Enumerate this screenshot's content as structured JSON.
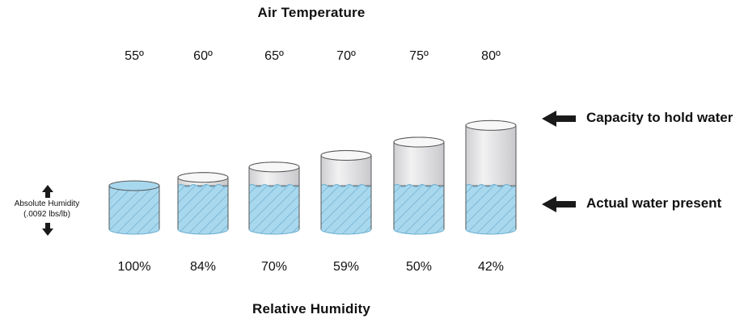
{
  "title_top": "Air Temperature",
  "title_bottom": "Relative Humidity",
  "legend": {
    "capacity": "Capacity to hold water",
    "actual": "Actual water present"
  },
  "absolute_humidity": {
    "line1": "Absolute Humidity",
    "line2": "(.0092 lbs/lb)"
  },
  "columns": [
    {
      "temp": "55º",
      "rh": "100%",
      "rh_value": 100
    },
    {
      "temp": "60º",
      "rh": "84%",
      "rh_value": 84
    },
    {
      "temp": "65º",
      "rh": "70%",
      "rh_value": 70
    },
    {
      "temp": "70º",
      "rh": "59%",
      "rh_value": 59
    },
    {
      "temp": "75º",
      "rh": "50%",
      "rh_value": 50
    },
    {
      "temp": "80º",
      "rh": "42%",
      "rh_value": 42
    }
  ],
  "colors": {
    "water": "#a8d8ee",
    "water_edge": "#6aaed0",
    "hatch": "#6aa9c9",
    "glass": "#e4e4e6",
    "outline": "#555555"
  }
}
